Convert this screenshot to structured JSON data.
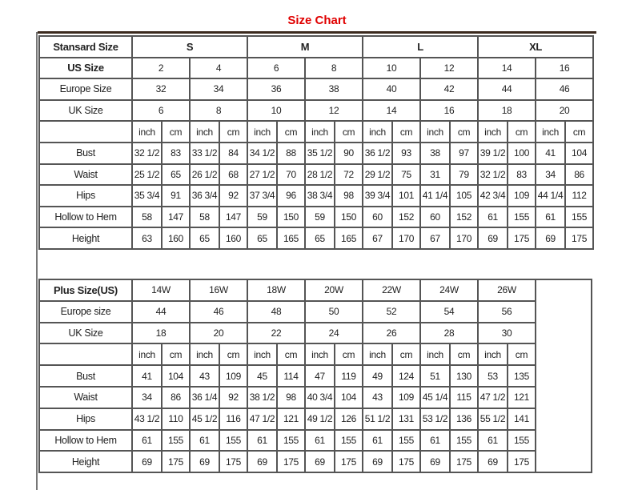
{
  "title": "Size Chart",
  "standard": {
    "header_label": "Stansard Size",
    "groups": [
      "S",
      "M",
      "L",
      "XL"
    ],
    "us_label": "US Size",
    "us": [
      "2",
      "4",
      "6",
      "8",
      "10",
      "12",
      "14",
      "16"
    ],
    "europe_label": "Europe Size",
    "europe": [
      "32",
      "34",
      "36",
      "38",
      "40",
      "42",
      "44",
      "46"
    ],
    "uk_label": "UK Size",
    "uk": [
      "6",
      "8",
      "10",
      "12",
      "14",
      "16",
      "18",
      "20"
    ],
    "unit_inch": "inch",
    "unit_cm": "cm",
    "rows": [
      {
        "label": "Bust",
        "values": [
          "32 1/2",
          "83",
          "33 1/2",
          "84",
          "34 1/2",
          "88",
          "35 1/2",
          "90",
          "36 1/2",
          "93",
          "38",
          "97",
          "39 1/2",
          "100",
          "41",
          "104"
        ]
      },
      {
        "label": "Waist",
        "values": [
          "25 1/2",
          "65",
          "26 1/2",
          "68",
          "27 1/2",
          "70",
          "28 1/2",
          "72",
          "29 1/2",
          "75",
          "31",
          "79",
          "32 1/2",
          "83",
          "34",
          "86"
        ]
      },
      {
        "label": "Hips",
        "values": [
          "35 3/4",
          "91",
          "36 3/4",
          "92",
          "37 3/4",
          "96",
          "38 3/4",
          "98",
          "39 3/4",
          "101",
          "41 1/4",
          "105",
          "42 3/4",
          "109",
          "44 1/4",
          "112"
        ]
      },
      {
        "label": "Hollow to Hem",
        "values": [
          "58",
          "147",
          "58",
          "147",
          "59",
          "150",
          "59",
          "150",
          "60",
          "152",
          "60",
          "152",
          "61",
          "155",
          "61",
          "155"
        ]
      },
      {
        "label": "Height",
        "values": [
          "63",
          "160",
          "65",
          "160",
          "65",
          "165",
          "65",
          "165",
          "67",
          "170",
          "67",
          "170",
          "69",
          "175",
          "69",
          "175"
        ]
      }
    ]
  },
  "plus": {
    "header_label": "Plus Size(US)",
    "us": [
      "14W",
      "16W",
      "18W",
      "20W",
      "22W",
      "24W",
      "26W"
    ],
    "europe_label": "Europe size",
    "europe": [
      "44",
      "46",
      "48",
      "50",
      "52",
      "54",
      "56"
    ],
    "uk_label": "UK Size",
    "uk": [
      "18",
      "20",
      "22",
      "24",
      "26",
      "28",
      "30"
    ],
    "unit_inch": "inch",
    "unit_cm": "cm",
    "rows": [
      {
        "label": "Bust",
        "values": [
          "41",
          "104",
          "43",
          "109",
          "45",
          "114",
          "47",
          "119",
          "49",
          "124",
          "51",
          "130",
          "53",
          "135"
        ]
      },
      {
        "label": "Waist",
        "values": [
          "34",
          "86",
          "36 1/4",
          "92",
          "38 1/2",
          "98",
          "40 3/4",
          "104",
          "43",
          "109",
          "45 1/4",
          "115",
          "47 1/2",
          "121"
        ]
      },
      {
        "label": "Hips",
        "values": [
          "43 1/2",
          "110",
          "45 1/2",
          "116",
          "47 1/2",
          "121",
          "49 1/2",
          "126",
          "51 1/2",
          "131",
          "53 1/2",
          "136",
          "55 1/2",
          "141"
        ]
      },
      {
        "label": "Hollow to Hem",
        "values": [
          "61",
          "155",
          "61",
          "155",
          "61",
          "155",
          "61",
          "155",
          "61",
          "155",
          "61",
          "155",
          "61",
          "155"
        ]
      },
      {
        "label": "Height",
        "values": [
          "69",
          "175",
          "69",
          "175",
          "69",
          "175",
          "69",
          "175",
          "69",
          "175",
          "69",
          "175",
          "69",
          "175"
        ]
      }
    ]
  }
}
